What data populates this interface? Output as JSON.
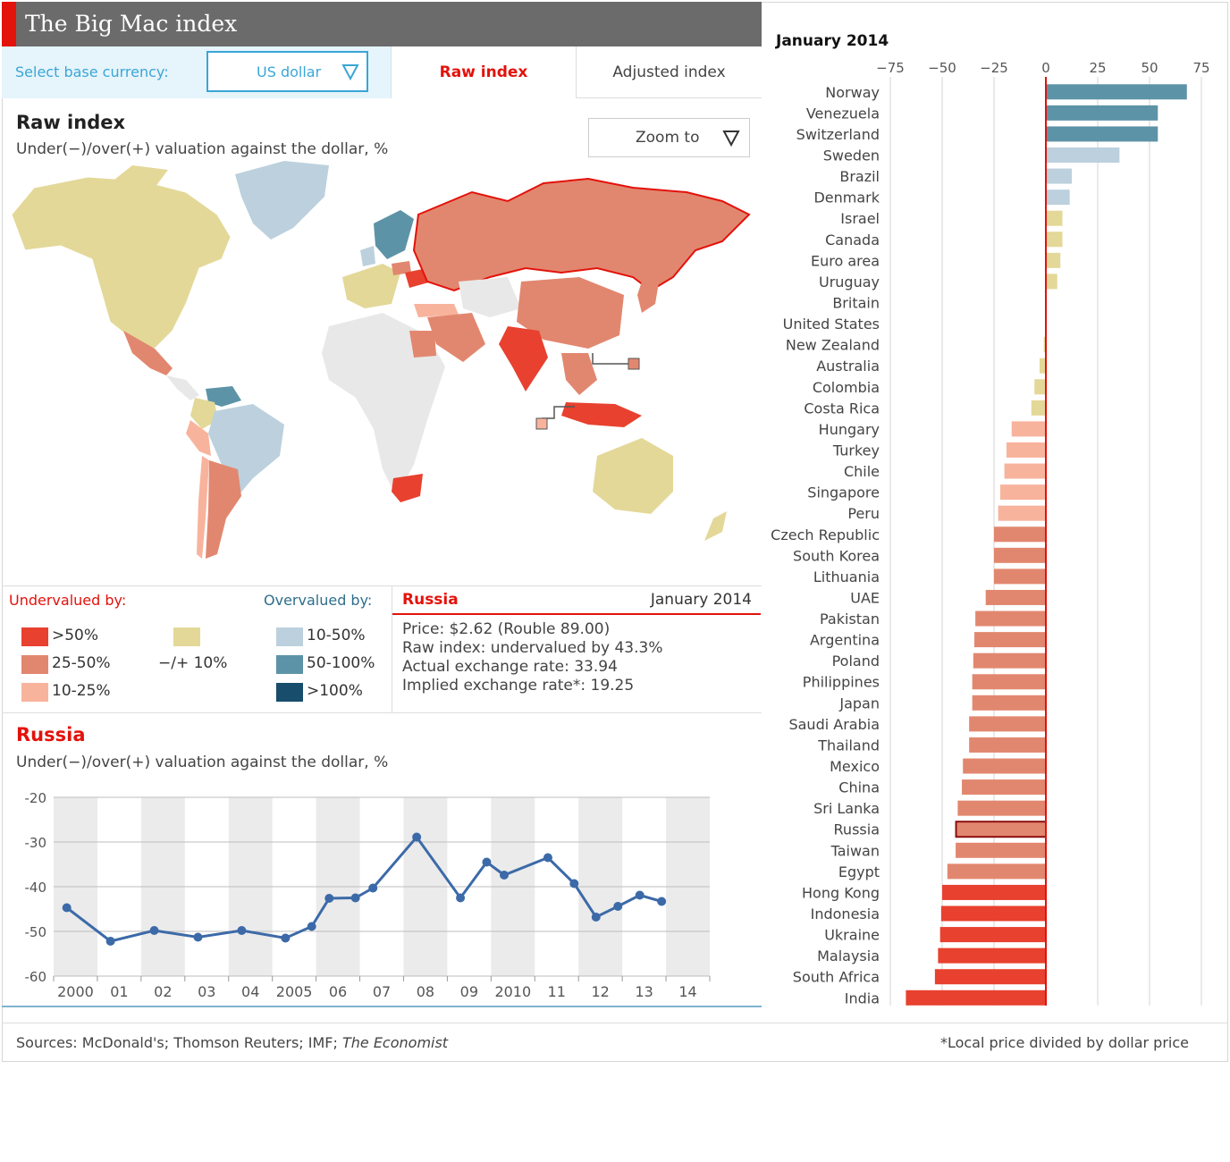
{
  "header": {
    "title": "The Big Mac index"
  },
  "controls": {
    "currency_label": "Select base currency:",
    "currency_value": "US dollar",
    "tab_raw": "Raw index",
    "tab_adjusted": "Adjusted index",
    "zoom_label": "Zoom to"
  },
  "map_section": {
    "title": "Raw index",
    "subtitle": "Under(−)/over(+) valuation against the dollar, %"
  },
  "colors": {
    "under_50": "#e8412f",
    "under_25_50": "#e2876f",
    "under_10_25": "#f8b39d",
    "neutral": "#e3d898",
    "over_10_50": "#bcd1dd",
    "over_50_100": "#5d93a7",
    "over_100": "#184d6b",
    "no_data": "#e8e8e8",
    "accent": "#e3120b",
    "line": "#3c6aa8"
  },
  "legend": {
    "under_title": "Undervalued by:",
    "over_title": "Overvalued by:",
    "under_items": [
      ">50%",
      "25-50%",
      "10-25%"
    ],
    "neutral_label": "−/+ 10%",
    "over_items": [
      "10-50%",
      "50-100%",
      ">100%"
    ]
  },
  "info": {
    "country": "Russia",
    "date": "January 2014",
    "price": "Price: $2.62 (Rouble 89.00)",
    "raw_index": "Raw index: undervalued by 43.3%",
    "actual_rate": "Actual exchange rate: 33.94",
    "implied_rate": "Implied exchange rate*: 19.25"
  },
  "chart_data": [
    {
      "type": "line",
      "title": "Russia",
      "subtitle": "Under(−)/over(+) valuation against the dollar, %",
      "ylim": [
        -60,
        -20
      ],
      "yticks": [
        -20,
        -30,
        -40,
        -50,
        -60
      ],
      "xlabels": [
        "2000",
        "01",
        "02",
        "03",
        "04",
        "2005",
        "06",
        "07",
        "08",
        "09",
        "2010",
        "11",
        "12",
        "13",
        "14"
      ],
      "x": [
        2000.3,
        2001.3,
        2002.3,
        2003.3,
        2004.3,
        2005.3,
        2005.9,
        2006.3,
        2006.9,
        2007.3,
        2008.3,
        2009.3,
        2009.9,
        2010.3,
        2011.3,
        2011.9,
        2012.4,
        2012.9,
        2013.4,
        2013.9
      ],
      "y": [
        -44.7,
        -52.2,
        -49.8,
        -51.3,
        -49.8,
        -51.5,
        -48.9,
        -42.6,
        -42.5,
        -40.3,
        -28.9,
        -42.5,
        -34.5,
        -37.4,
        -33.5,
        -39.3,
        -46.8,
        -44.4,
        -41.9,
        -43.3
      ]
    },
    {
      "type": "bar",
      "title": "January 2014",
      "xlim": [
        -75,
        75
      ],
      "xticks": [
        -75,
        -50,
        -25,
        0,
        25,
        50,
        75
      ],
      "highlight": "Russia",
      "categories": [
        "Norway",
        "Venezuela",
        "Switzerland",
        "Sweden",
        "Brazil",
        "Denmark",
        "Israel",
        "Canada",
        "Euro area",
        "Uruguay",
        "Britain",
        "United States",
        "New Zealand",
        "Australia",
        "Colombia",
        "Costa Rica",
        "Hungary",
        "Turkey",
        "Chile",
        "Singapore",
        "Peru",
        "Czech Republic",
        "South Korea",
        "Lithuania",
        "UAE",
        "Pakistan",
        "Argentina",
        "Poland",
        "Philippines",
        "Japan",
        "Saudi Arabia",
        "Thailand",
        "Mexico",
        "China",
        "Sri Lanka",
        "Russia",
        "Taiwan",
        "Egypt",
        "Hong Kong",
        "Indonesia",
        "Ukraine",
        "Malaysia",
        "South Africa",
        "India"
      ],
      "values": [
        68.0,
        54.0,
        54.0,
        35.5,
        12.5,
        11.5,
        8.0,
        8.0,
        7.0,
        5.5,
        0.2,
        0,
        -1.0,
        -3.0,
        -5.5,
        -7.0,
        -16.5,
        -19.0,
        -20.0,
        -22.0,
        -23.0,
        -25.0,
        -25.0,
        -25.0,
        -29.0,
        -34.0,
        -34.5,
        -35.0,
        -35.5,
        -35.5,
        -37.0,
        -37.0,
        -40.0,
        -40.5,
        -42.5,
        -43.3,
        -43.5,
        -47.5,
        -50.0,
        -50.5,
        -51.0,
        -52.0,
        -53.5,
        -67.5
      ]
    }
  ],
  "footer": {
    "sources_prefix": "Sources: McDonald's; Thomson Reuters; IMF; ",
    "sources_italic": "The Economist",
    "note": "*Local price divided by dollar price"
  }
}
